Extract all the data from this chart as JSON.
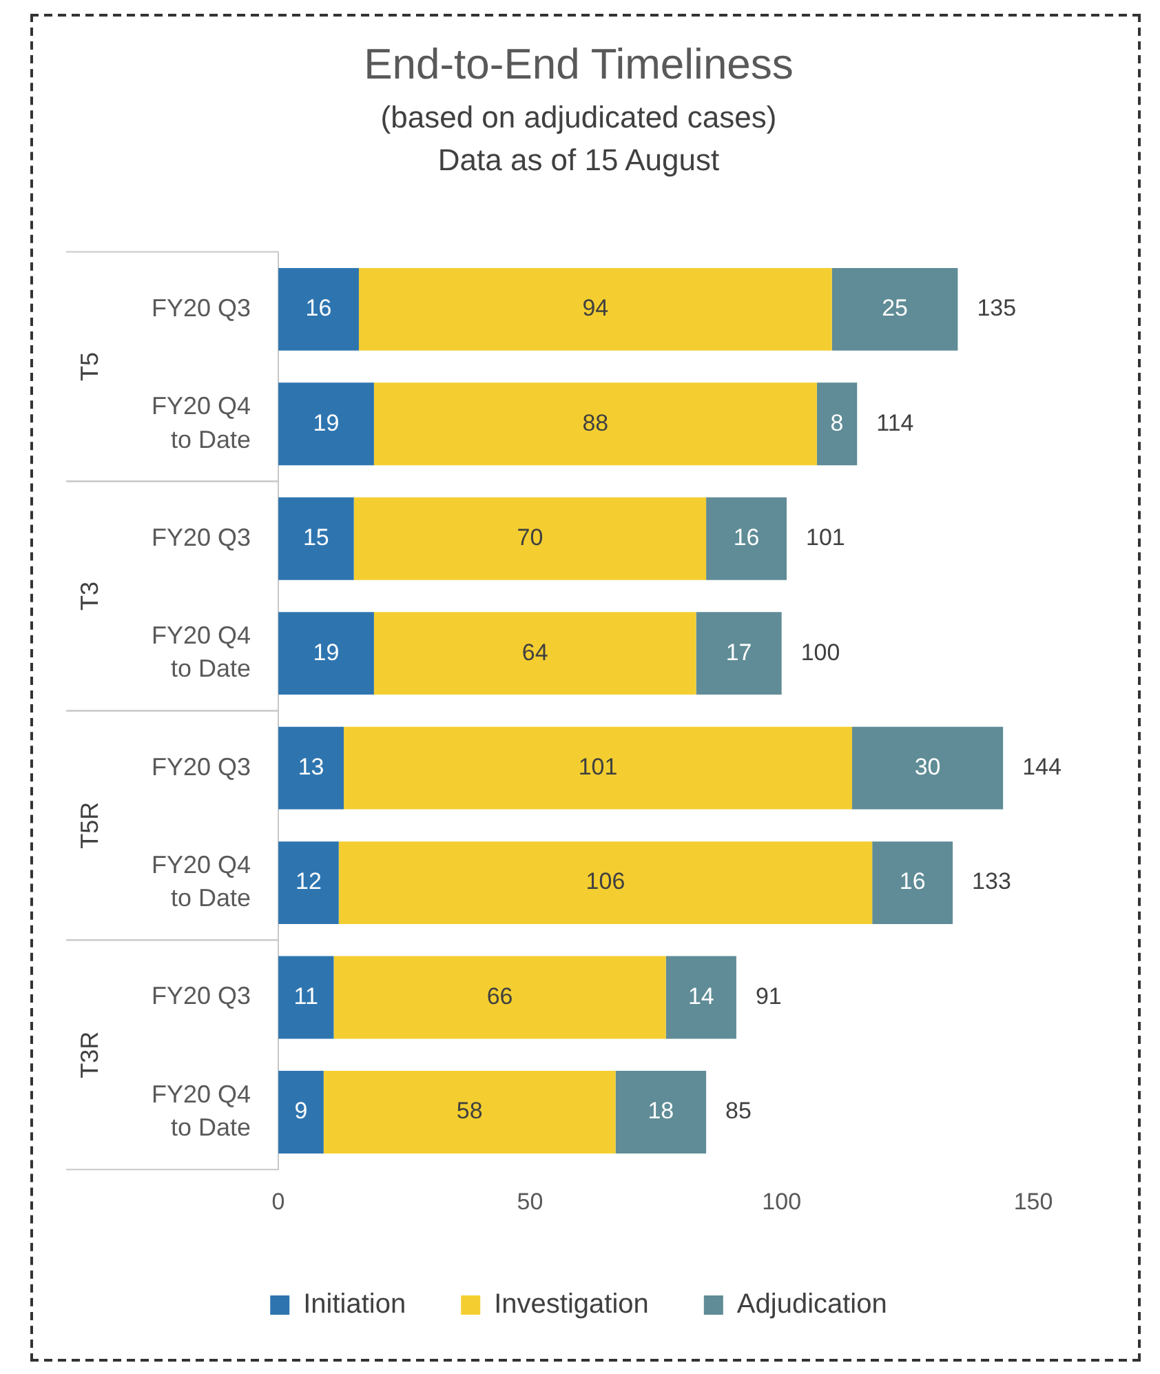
{
  "chart_data": {
    "type": "bar",
    "orientation": "horizontal",
    "stacked": true,
    "title": "End-to-End Timeliness",
    "subtitle": "(based on adjudicated cases)\nData as of 15 August",
    "categories": [
      "FY20 Q3",
      "FY20 Q4\nto Date",
      "FY20 Q3",
      "FY20 Q4\nto Date",
      "FY20 Q3",
      "FY20 Q4\nto Date",
      "FY20 Q3",
      "FY20 Q4\nto Date"
    ],
    "series": [
      {
        "name": "Initiation",
        "color": "#2e75b0",
        "values": [
          16,
          19,
          15,
          19,
          13,
          12,
          11,
          9
        ]
      },
      {
        "name": "Investigation",
        "color": "#f4ce30",
        "values": [
          94,
          88,
          70,
          64,
          101,
          106,
          66,
          58
        ]
      },
      {
        "name": "Adjudication",
        "color": "#5f8c96",
        "values": [
          25,
          8,
          16,
          17,
          30,
          16,
          14,
          18
        ]
      }
    ],
    "totals": [
      "135",
      "114",
      "101",
      "100",
      "144",
      "133",
      "91",
      "85"
    ],
    "annotations": [
      "T5",
      "T3",
      "T5R",
      "T3R"
    ],
    "data_labels": true,
    "xlim": [
      0,
      150
    ],
    "xticks": [
      0,
      50,
      100,
      150
    ],
    "grid": false,
    "legend": "bottom"
  }
}
